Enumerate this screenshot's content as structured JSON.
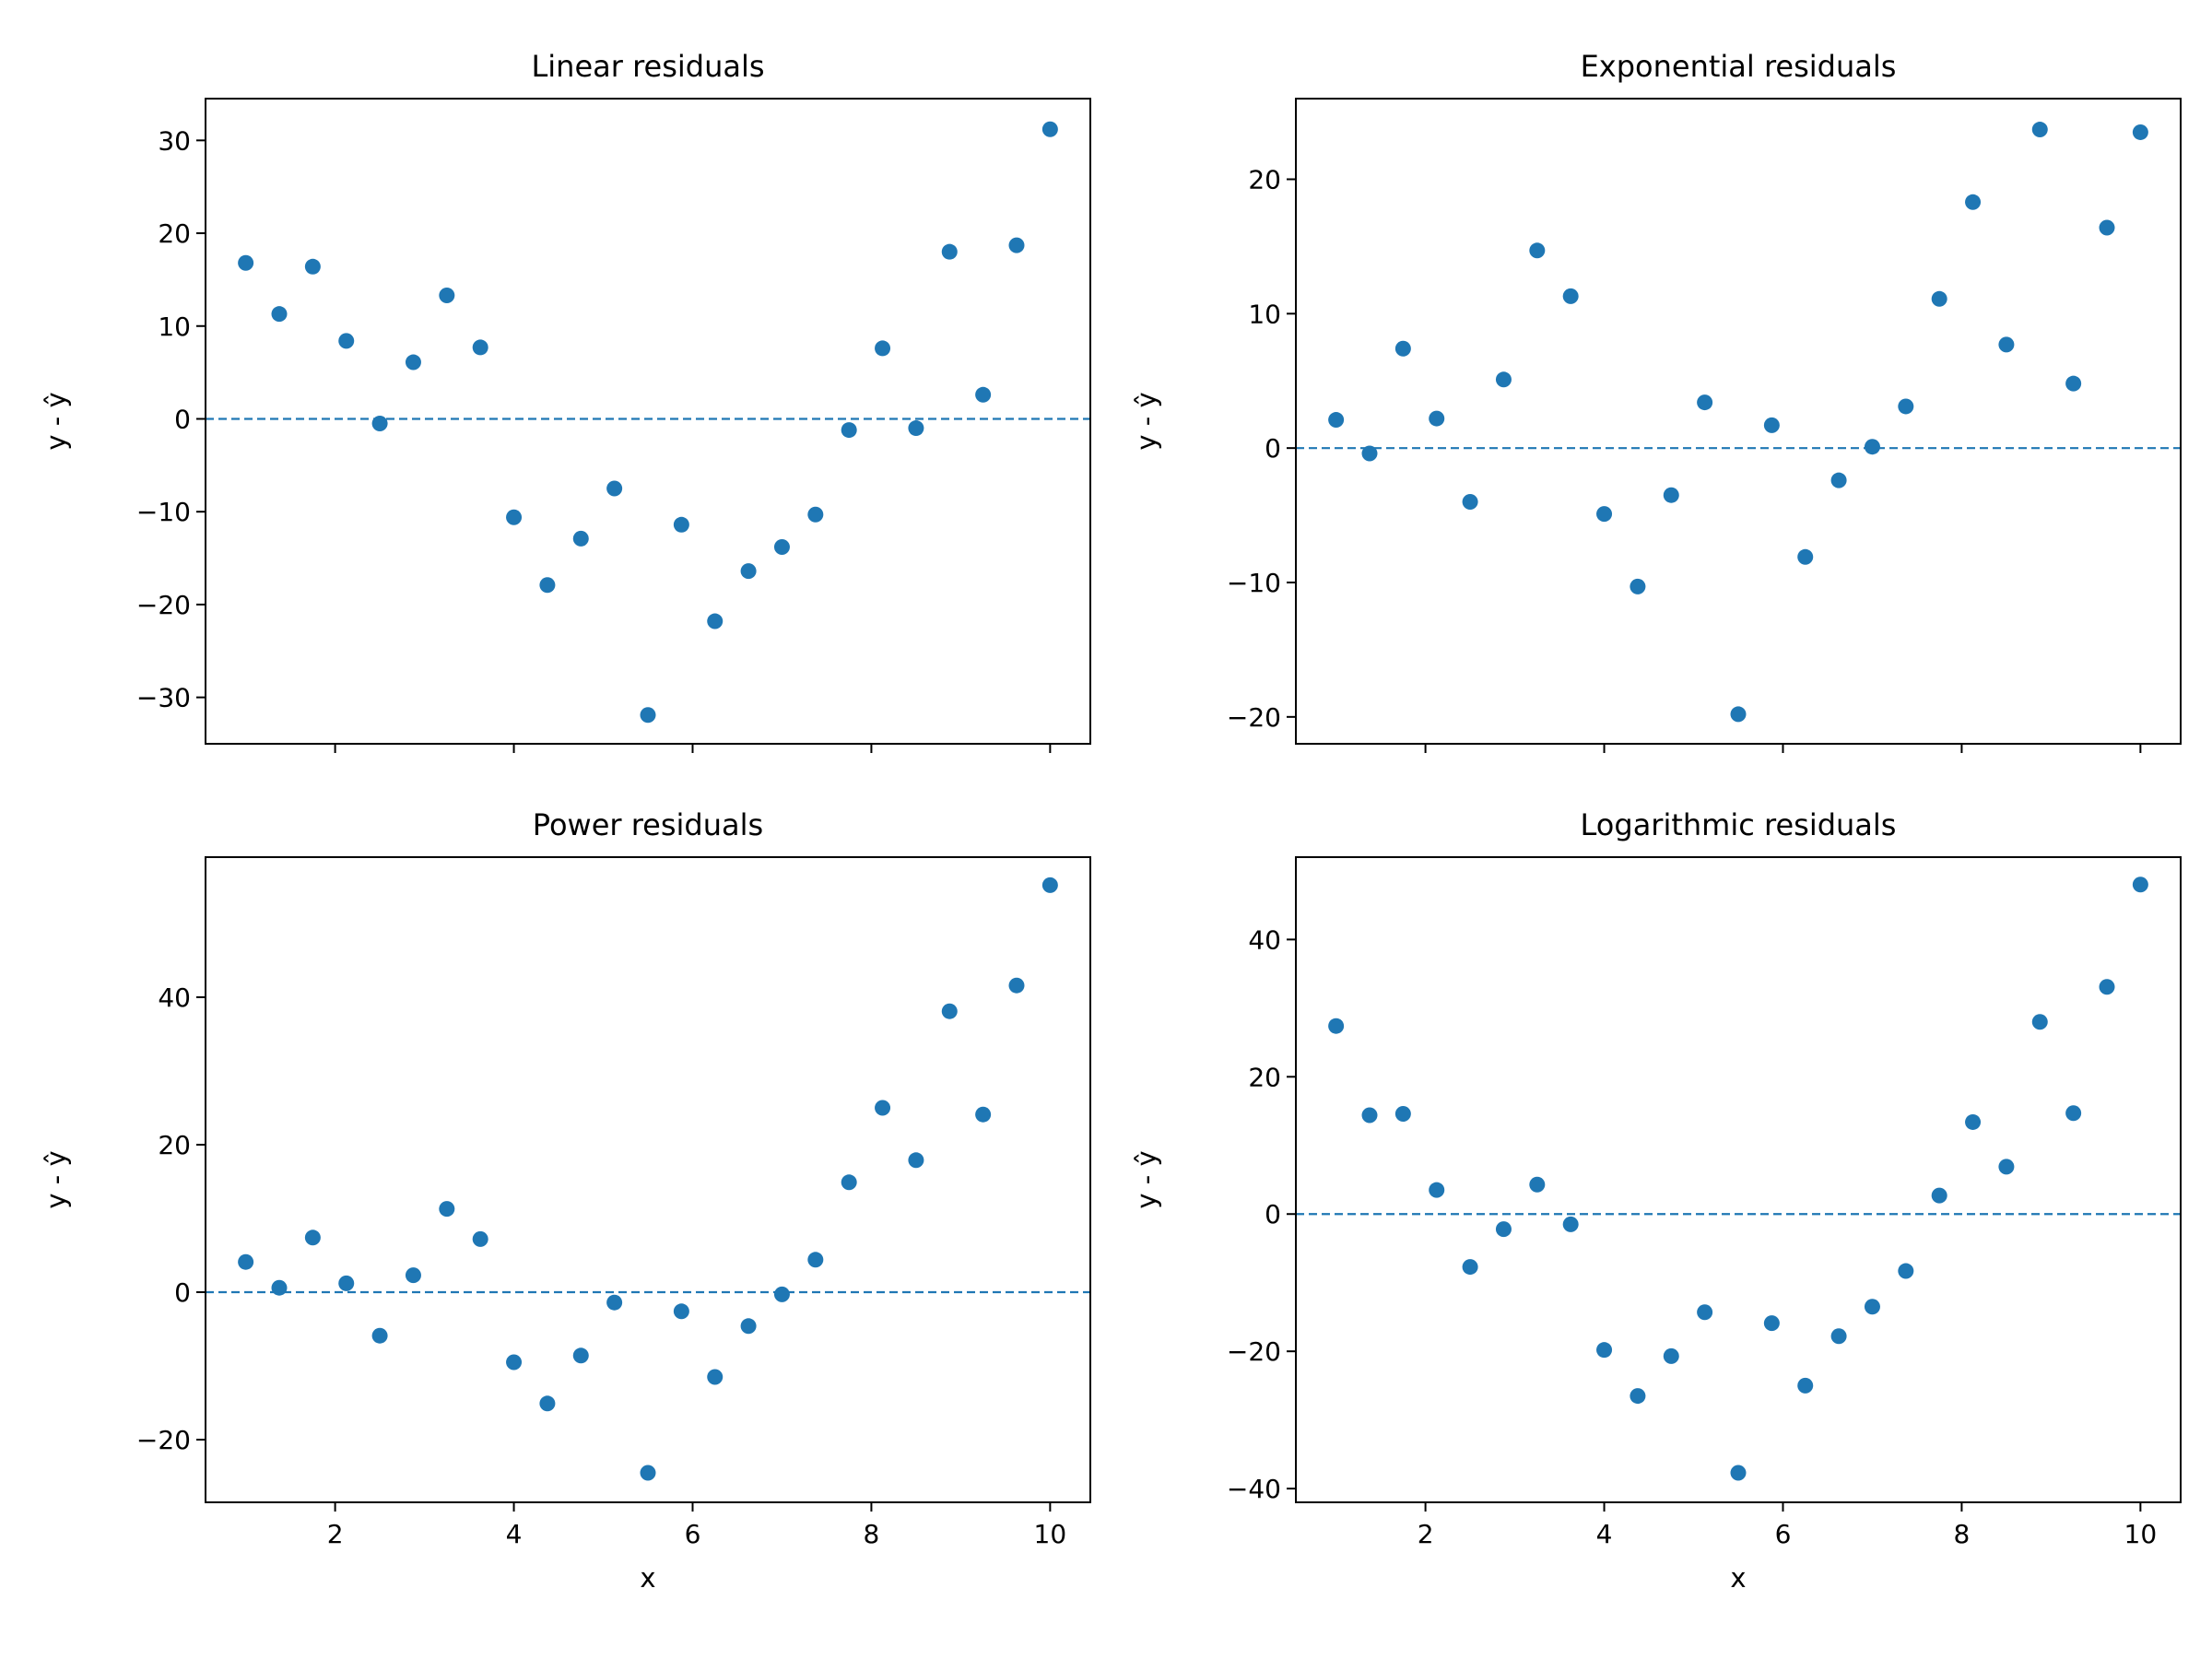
{
  "chart_data": [
    {
      "type": "scatter",
      "title": "Linear residuals",
      "xlabel": "",
      "ylabel": "y - ŷ",
      "xlim": [
        0.55,
        10.45
      ],
      "ylim": [
        -35,
        34.5
      ],
      "xticks": [
        2,
        4,
        6,
        8,
        10
      ],
      "yticks": [
        -30,
        -20,
        -10,
        0,
        10,
        20,
        30
      ],
      "ytick_labels": [
        "−30",
        "−20",
        "−10",
        "0",
        "10",
        "20",
        "30"
      ],
      "show_xtick_labels": false,
      "reference_line": 0,
      "color": "#1f77b4",
      "x": [
        1.0,
        1.375,
        1.75,
        2.125,
        2.5,
        2.875,
        3.25,
        3.625,
        4.0,
        4.375,
        4.75,
        5.125,
        5.5,
        5.875,
        6.25,
        6.625,
        7.0,
        7.375,
        7.75,
        8.125,
        8.5,
        8.875,
        9.25,
        9.625,
        10.0
      ],
      "y": [
        16.8,
        11.3,
        16.4,
        8.4,
        -0.5,
        6.1,
        13.3,
        7.7,
        -10.6,
        -17.9,
        -12.9,
        -7.5,
        -31.9,
        -11.4,
        -21.8,
        -16.4,
        -13.8,
        -10.3,
        -1.2,
        7.6,
        -1.0,
        18.0,
        2.6,
        18.7,
        31.2
      ]
    },
    {
      "type": "scatter",
      "title": "Exponential residuals",
      "xlabel": "",
      "ylabel": "y - ŷ",
      "xlim": [
        0.55,
        10.45
      ],
      "ylim": [
        -22,
        26
      ],
      "xticks": [
        2,
        4,
        6,
        8,
        10
      ],
      "yticks": [
        -20,
        -10,
        0,
        10,
        20
      ],
      "ytick_labels": [
        "−20",
        "−10",
        "0",
        "10",
        "20"
      ],
      "show_xtick_labels": false,
      "reference_line": 0,
      "color": "#1f77b4",
      "x": [
        1.0,
        1.375,
        1.75,
        2.125,
        2.5,
        2.875,
        3.25,
        3.625,
        4.0,
        4.375,
        4.75,
        5.125,
        5.5,
        5.875,
        6.25,
        6.625,
        7.0,
        7.375,
        7.75,
        8.125,
        8.5,
        8.875,
        9.25,
        9.625,
        10.0
      ],
      "y": [
        2.1,
        -0.4,
        7.4,
        2.2,
        -4.0,
        5.1,
        14.7,
        11.3,
        -4.9,
        -10.3,
        -3.5,
        3.4,
        -19.8,
        1.7,
        -8.1,
        -2.4,
        0.1,
        3.1,
        11.1,
        18.3,
        7.7,
        23.7,
        4.8,
        16.4,
        23.5
      ]
    },
    {
      "type": "scatter",
      "title": "Power residuals",
      "xlabel": "x",
      "ylabel": "y - ŷ",
      "xlim": [
        0.55,
        10.45
      ],
      "ylim": [
        -28.5,
        59
      ],
      "xticks": [
        2,
        4,
        6,
        8,
        10
      ],
      "xtick_labels": [
        "2",
        "4",
        "6",
        "8",
        "10"
      ],
      "yticks": [
        -20,
        0,
        20,
        40
      ],
      "ytick_labels": [
        "−20",
        "0",
        "20",
        "40"
      ],
      "show_xtick_labels": true,
      "reference_line": 0,
      "color": "#1f77b4",
      "x": [
        1.0,
        1.375,
        1.75,
        2.125,
        2.5,
        2.875,
        3.25,
        3.625,
        4.0,
        4.375,
        4.75,
        5.125,
        5.5,
        5.875,
        6.25,
        6.625,
        7.0,
        7.375,
        7.75,
        8.125,
        8.5,
        8.875,
        9.25,
        9.625,
        10.0
      ],
      "y": [
        4.1,
        0.6,
        7.4,
        1.2,
        -5.9,
        2.3,
        11.3,
        7.2,
        -9.5,
        -15.1,
        -8.6,
        -1.4,
        -24.5,
        -2.6,
        -11.5,
        -4.6,
        -0.3,
        4.4,
        14.9,
        25.0,
        17.9,
        38.1,
        24.1,
        41.6,
        55.2
      ]
    },
    {
      "type": "scatter",
      "title": "Logarithmic residuals",
      "xlabel": "x",
      "ylabel": "y - ŷ",
      "xlim": [
        0.55,
        10.45
      ],
      "ylim": [
        -42,
        52
      ],
      "xticks": [
        2,
        4,
        6,
        8,
        10
      ],
      "xtick_labels": [
        "2",
        "4",
        "6",
        "8",
        "10"
      ],
      "yticks": [
        -40,
        -20,
        0,
        20,
        40
      ],
      "ytick_labels": [
        "−40",
        "−20",
        "0",
        "20",
        "40"
      ],
      "show_xtick_labels": true,
      "reference_line": 0,
      "color": "#1f77b4",
      "x": [
        1.0,
        1.375,
        1.75,
        2.125,
        2.5,
        2.875,
        3.25,
        3.625,
        4.0,
        4.375,
        4.75,
        5.125,
        5.5,
        5.875,
        6.25,
        6.625,
        7.0,
        7.375,
        7.75,
        8.125,
        8.5,
        8.875,
        9.25,
        9.625,
        10.0
      ],
      "y": [
        27.4,
        14.4,
        14.6,
        3.5,
        -7.7,
        -2.2,
        4.3,
        -1.5,
        -19.8,
        -26.5,
        -20.7,
        -14.3,
        -37.7,
        -15.9,
        -25.0,
        -17.8,
        -13.5,
        -8.3,
        2.7,
        13.4,
        6.9,
        28.0,
        14.7,
        33.1,
        48.0
      ]
    }
  ]
}
